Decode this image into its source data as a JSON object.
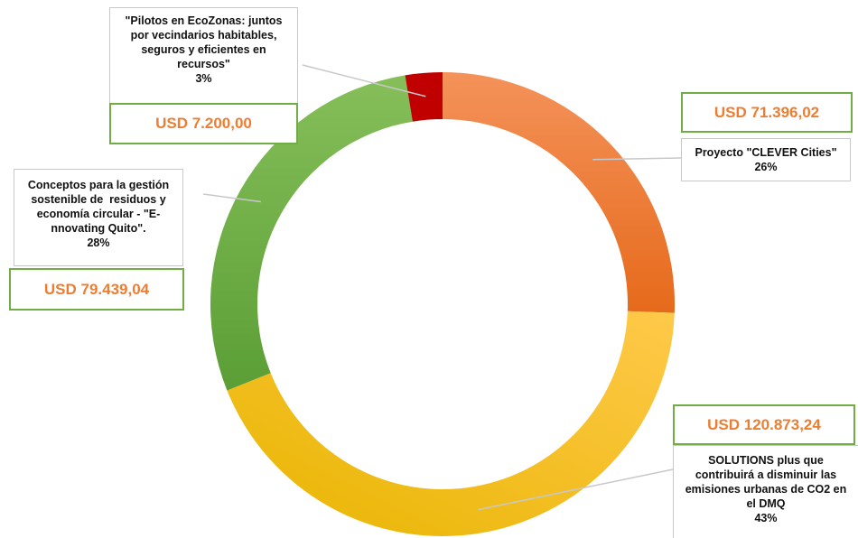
{
  "chart_data": {
    "type": "pie",
    "variant": "doughnut",
    "total_label": "",
    "slices": [
      {
        "name": "Proyecto \"CLEVER Cities\"",
        "label_lines": [
          "Proyecto \"CLEVER Cities\""
        ],
        "percent_label": "26%",
        "amount_label": "USD 71.396,02",
        "value": 71396.02,
        "color_start": "#f4925a",
        "color_end": "#e66a1b"
      },
      {
        "name": "SOLUTIONS plus que contribuirá a disminuir las emisiones urbanas de CO2 en el DMQ",
        "label_lines": [
          "SOLUTIONS plus que",
          "contribuirá a disminuir las",
          "emisiones urbanas de CO2 en",
          "el DMQ"
        ],
        "percent_label": "43%",
        "amount_label": "USD 120.873,24",
        "value": 120873.24,
        "color_start": "#ffc94a",
        "color_end": "#e8b500"
      },
      {
        "name": "Conceptos para la gestión sostenible de residuos y economía circular - \"E-nnovating Quito\".",
        "label_lines": [
          "Conceptos para la gestión",
          "sostenible de  residuos y",
          "economía circular - \"E-",
          "nnovating Quito\"."
        ],
        "percent_label": "28%",
        "amount_label": "USD 79.439,04",
        "value": 79439.04,
        "color_start": "#5b9e36",
        "color_end": "#86bf5a"
      },
      {
        "name": "\"Pilotos en EcoZonas: juntos por vecindarios habitables, seguros y eficientes en recursos\"",
        "label_lines": [
          "\"Pilotos en EcoZonas: juntos",
          "por vecindarios habitables,",
          "seguros y eficientes en",
          "recursos\""
        ],
        "percent_label": "3%",
        "amount_label": "USD 7.200,00",
        "value": 7200.0,
        "color_start": "#c00000",
        "color_end": "#c00000"
      }
    ],
    "start_angle_deg": 0,
    "direction": "clockwise",
    "legend": "none",
    "callout_border_color": "#c8c8c8",
    "amount_border_color": "#70ad47",
    "amount_text_color": "#ed7d31"
  }
}
